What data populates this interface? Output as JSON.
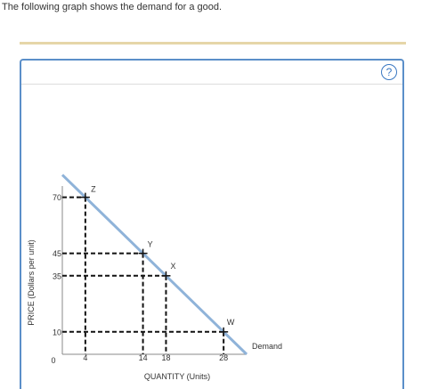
{
  "question": {
    "text": "The following graph shows the demand for a good."
  },
  "panel": {
    "help_label": "?",
    "help_icon": "question-circle-icon"
  },
  "chart_data": {
    "type": "line",
    "xlabel": "QUANTITY (Units)",
    "ylabel": "PRICE (Dollars per unit)",
    "origin_label": "0",
    "xlim": [
      0,
      32
    ],
    "ylim": [
      0,
      75
    ],
    "x_ticks": [
      {
        "value": 4,
        "label": "4"
      },
      {
        "value": 14,
        "label": "14"
      },
      {
        "value": 18,
        "label": "18"
      },
      {
        "value": 28,
        "label": "28"
      }
    ],
    "y_ticks": [
      {
        "value": 10,
        "label": "10"
      },
      {
        "value": 35,
        "label": "35"
      },
      {
        "value": 45,
        "label": "45"
      },
      {
        "value": 70,
        "label": "70"
      }
    ],
    "series": [
      {
        "name": "Demand",
        "color": "#8fb3d9",
        "x": [
          0,
          32
        ],
        "y": [
          80,
          0
        ]
      }
    ],
    "points": [
      {
        "label": "Z",
        "x": 4,
        "y": 70
      },
      {
        "label": "Y",
        "x": 14,
        "y": 45
      },
      {
        "label": "X",
        "x": 18,
        "y": 35
      },
      {
        "label": "W",
        "x": 28,
        "y": 10
      }
    ],
    "guides": {
      "style": "dashed",
      "color": "#111111"
    },
    "grid": false
  }
}
